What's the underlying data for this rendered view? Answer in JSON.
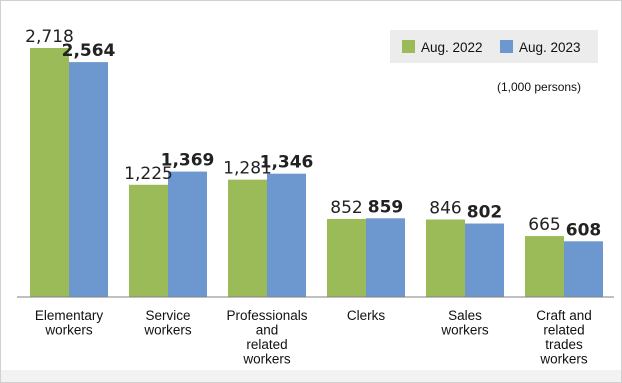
{
  "chart_data": {
    "type": "bar",
    "categories": [
      [
        "Elementary",
        "workers"
      ],
      [
        "Service",
        "workers"
      ],
      [
        "Professionals",
        "and",
        "related",
        "workers"
      ],
      [
        "Clerks"
      ],
      [
        "Sales",
        "workers"
      ],
      [
        "Craft and",
        "related",
        "trades",
        "workers"
      ]
    ],
    "series": [
      {
        "name": "Aug. 2022",
        "color": "#9bbb59",
        "values": [
          2718,
          1225,
          1281,
          852,
          846,
          665
        ],
        "labels": [
          "2,718",
          "1,225",
          "1,281",
          "852",
          "846",
          "665"
        ],
        "bold": false
      },
      {
        "name": "Aug. 2023",
        "color": "#6d97cf",
        "values": [
          2564,
          1369,
          1346,
          859,
          802,
          608
        ],
        "labels": [
          "2,564",
          "1,369",
          "1,346",
          "859",
          "802",
          "608"
        ],
        "bold": true
      }
    ],
    "unit_note": "(1,000 persons)",
    "ylim": [
      0,
      2800
    ],
    "legend_position": "top-right",
    "grid": false
  }
}
